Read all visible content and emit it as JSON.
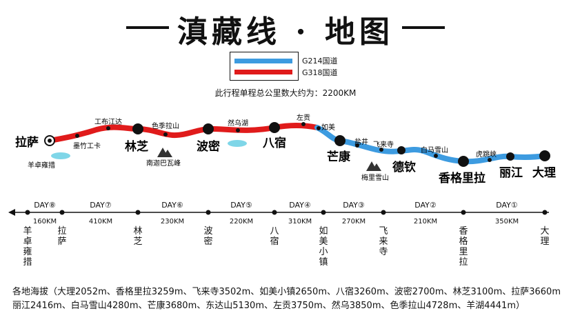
{
  "title": "滇藏线 · 地图",
  "legend": [
    {
      "label": "G214国道",
      "color": "#3d9be0"
    },
    {
      "label": "G318国道",
      "color": "#e01b1b"
    }
  ],
  "total_distance": "此行程单程总公里数大约为：2200KM",
  "cities_major": [
    "拉萨",
    "林芝",
    "波密",
    "八宿",
    "芒康",
    "德钦",
    "香格里拉",
    "丽江",
    "大理"
  ],
  "places_minor": [
    "工布江达",
    "墨竹工卡",
    "色季拉山",
    "然乌湖",
    "左贡",
    "如美",
    "盐井",
    "飞来寺",
    "白马雪山",
    "虎跳峡",
    "羊卓雍措"
  ],
  "mountains": [
    "南迦巴瓦峰",
    "梅里雪山"
  ],
  "timeline": {
    "days": [
      "DAY⑧",
      "DAY⑦",
      "DAY⑥",
      "DAY⑤",
      "DAY④",
      "DAY③",
      "DAY②",
      "DAY①"
    ],
    "distances": [
      "160KM",
      "410KM",
      "230KM",
      "220KM",
      "310KM",
      "270KM",
      "210KM",
      "350KM"
    ],
    "stops": [
      "羊卓雍措",
      "拉萨",
      "林芝",
      "波密",
      "八宿",
      "如美小镇",
      "飞来寺",
      "香格里拉",
      "大理"
    ]
  },
  "altitudes": {
    "line1": "各地海拔（大理2052m、香格里拉3259m、飞来寺3502m、如美小镇2650m、八宿3260m、波密2700m、林芝3100m、拉萨3660m",
    "line2": "丽江2416m、白马雪山4280m、芒康3680m、东达山5130m、左贡3750m、然乌3850m、色季拉山4728m、羊湖4441m）"
  }
}
